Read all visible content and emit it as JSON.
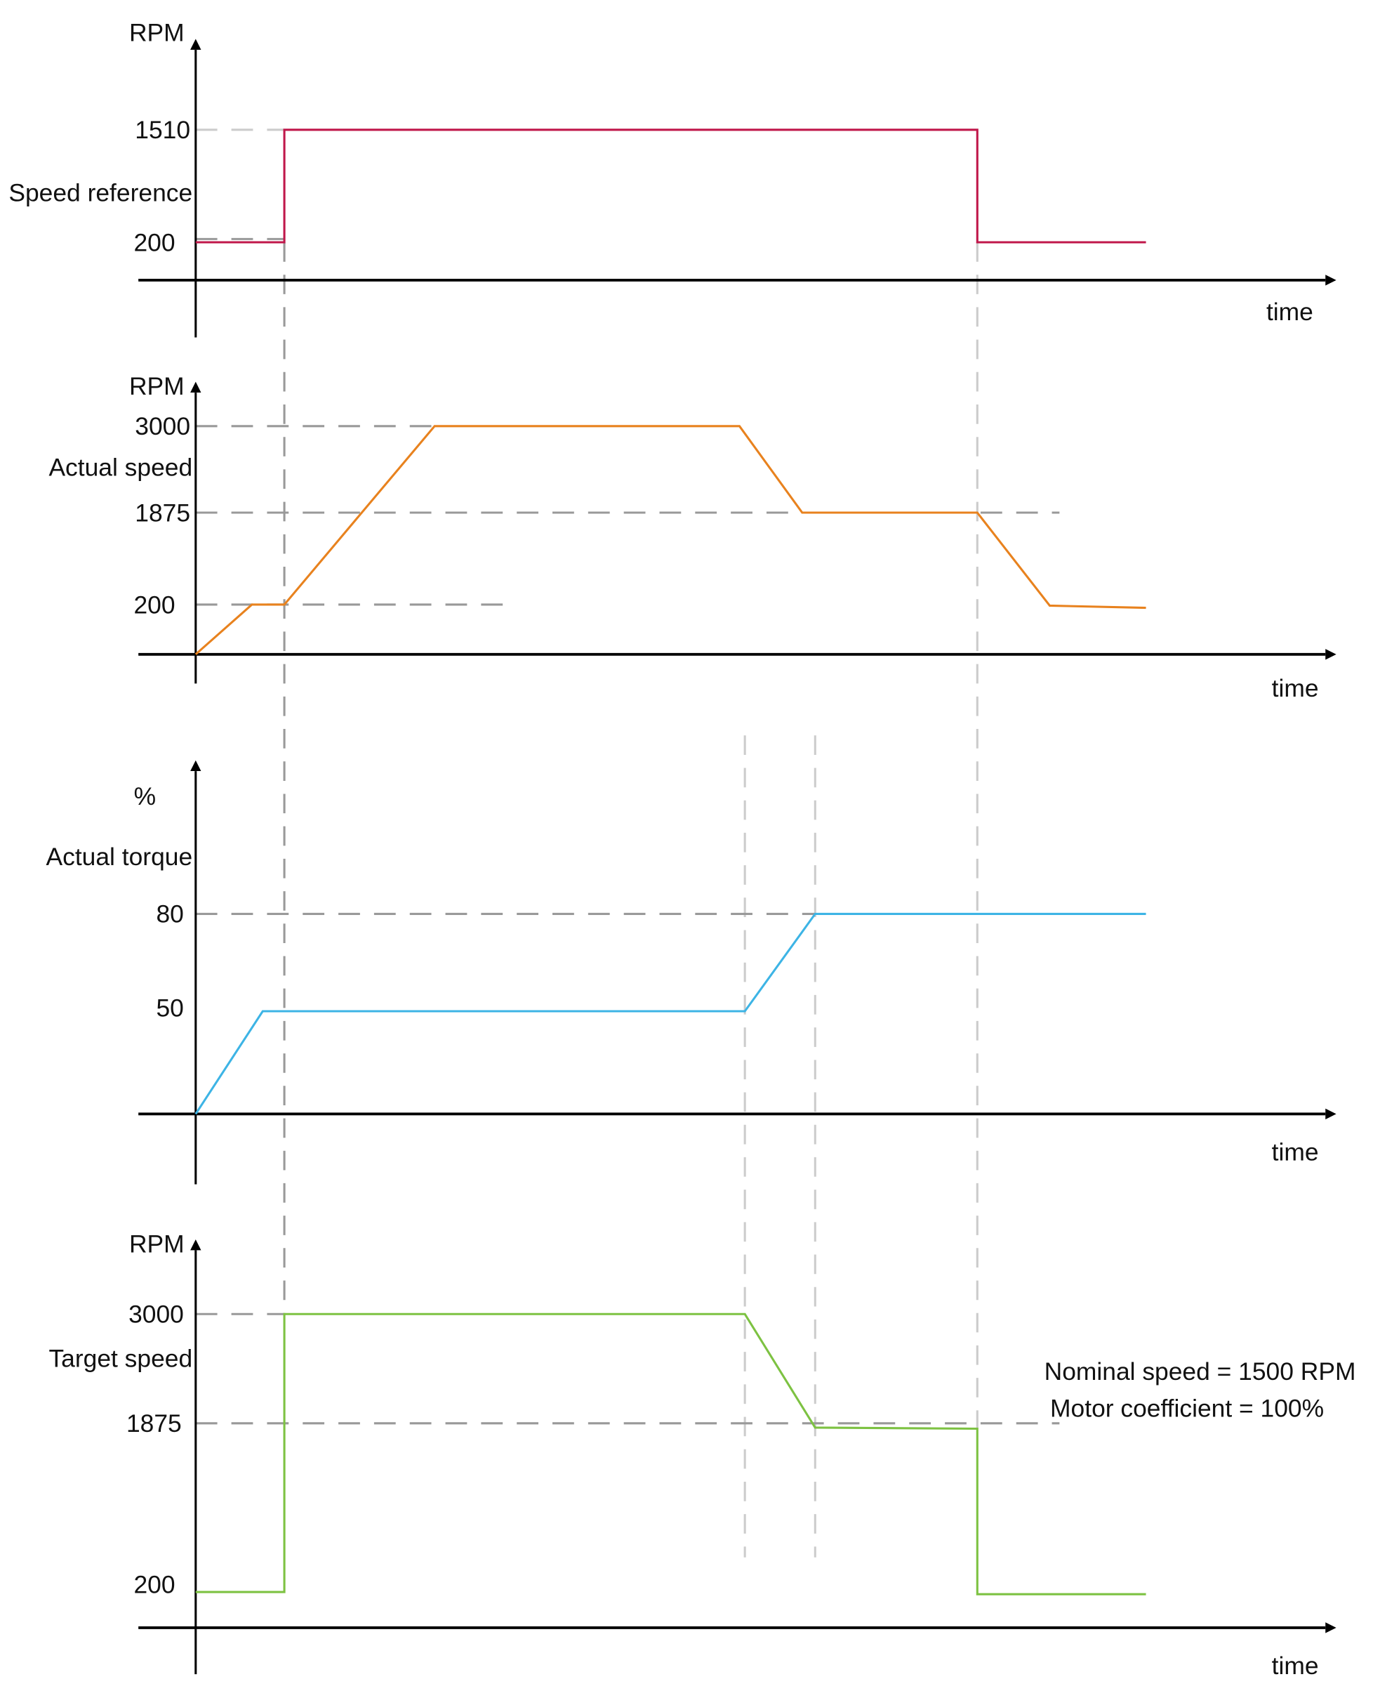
{
  "chart_data": [
    {
      "type": "line",
      "ylabel": "RPM",
      "series_label": "Speed reference",
      "xlabel": "time",
      "ticks": [
        "1510",
        "200"
      ],
      "tick_values": [
        1510,
        200
      ],
      "values": [
        200,
        200,
        1510,
        1510,
        200,
        200
      ],
      "color": "#c0174a"
    },
    {
      "type": "line",
      "ylabel": "RPM",
      "series_label": "Actual speed",
      "xlabel": "time",
      "ticks": [
        "3000",
        "1875",
        "200"
      ],
      "tick_values": [
        3000,
        1875,
        200
      ],
      "values": [
        0,
        200,
        200,
        3000,
        3000,
        1875,
        1875,
        200,
        190
      ],
      "color": "#e8821e"
    },
    {
      "type": "line",
      "ylabel": "%",
      "series_label": "Actual torque",
      "xlabel": "time",
      "ticks": [
        "80",
        "50"
      ],
      "tick_values": [
        80,
        50
      ],
      "values": [
        0,
        50,
        50,
        80,
        80
      ],
      "color": "#3db4e5"
    },
    {
      "type": "line",
      "ylabel": "RPM",
      "series_label": "Target speed",
      "xlabel": "time",
      "ticks": [
        "3000",
        "1875",
        "200"
      ],
      "tick_values": [
        3000,
        1875,
        200
      ],
      "values": [
        200,
        200,
        3000,
        3000,
        1875,
        1875,
        200,
        200
      ],
      "color": "#7dc242"
    }
  ],
  "notes": [
    "Nominal speed = 1500 RPM",
    "Motor coefficient = 100%"
  ]
}
